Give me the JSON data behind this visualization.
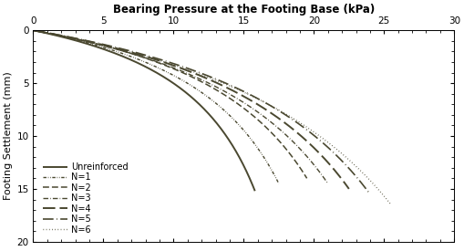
{
  "title": "Bearing Pressure at the Footing Base (kPa)",
  "ylabel": "Footing Settlement (mm)",
  "xlim": [
    0,
    30
  ],
  "ylim": [
    20,
    0
  ],
  "xticks": [
    0,
    5,
    10,
    15,
    20,
    25,
    30
  ],
  "yticks": [
    0,
    5,
    10,
    15,
    20
  ],
  "line_color": "#4a4830",
  "series": [
    {
      "label": "Unreinforced",
      "linestyle": "solid",
      "lw": 1.4,
      "max_pressure": 15.8,
      "max_settlement": 15.2,
      "shape": 3.5
    },
    {
      "label": "N=1",
      "linestyle": "densely_dashed",
      "lw": 1.0,
      "max_pressure": 17.5,
      "max_settlement": 14.5,
      "shape": 3.2
    },
    {
      "label": "N=2",
      "linestyle": "dashed",
      "lw": 1.1,
      "max_pressure": 19.5,
      "max_settlement": 14.0,
      "shape": 3.0
    },
    {
      "label": "N=3",
      "linestyle": "dashdot",
      "lw": 1.0,
      "max_pressure": 21.0,
      "max_settlement": 14.5,
      "shape": 2.8
    },
    {
      "label": "N=4",
      "linestyle": "long_dashed",
      "lw": 1.4,
      "max_pressure": 22.5,
      "max_settlement": 15.0,
      "shape": 2.8
    },
    {
      "label": "N=5",
      "linestyle": "long_dashdot",
      "lw": 1.2,
      "max_pressure": 24.0,
      "max_settlement": 15.5,
      "shape": 2.8
    },
    {
      "label": "N=6",
      "linestyle": "dotted",
      "lw": 1.0,
      "max_pressure": 25.5,
      "max_settlement": 16.5,
      "shape": 2.6
    }
  ],
  "background_color": "#ffffff",
  "title_fontsize": 8.5,
  "axis_fontsize": 8,
  "tick_fontsize": 7.5,
  "legend_fontsize": 7
}
